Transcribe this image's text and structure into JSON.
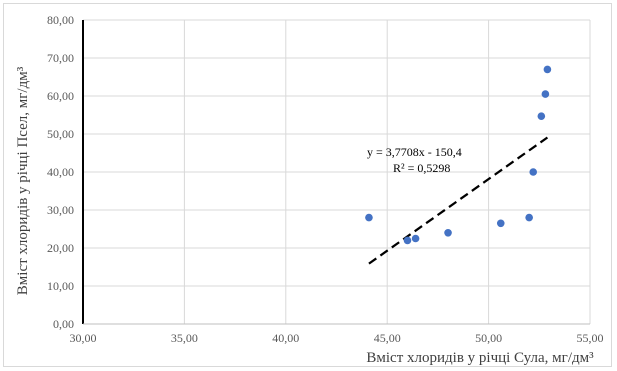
{
  "chart_data": {
    "type": "scatter",
    "xlabel": "Вміст хлоридів у річці Сула, мг/дм³",
    "ylabel": "Вміст хлоридів у річці Псел, мг/дм³",
    "xlim": [
      30,
      55
    ],
    "ylim": [
      0,
      80
    ],
    "x_ticks": [
      "30,00",
      "35,00",
      "40,00",
      "45,00",
      "50,00",
      "55,00"
    ],
    "y_ticks": [
      "0,00",
      "10,00",
      "20,00",
      "30,00",
      "40,00",
      "50,00",
      "60,00",
      "70,00",
      "80,00"
    ],
    "grid": true,
    "marker_color": "#4472c4",
    "points": [
      {
        "x": 44.1,
        "y": 28.0
      },
      {
        "x": 46.0,
        "y": 22.0
      },
      {
        "x": 46.4,
        "y": 22.5
      },
      {
        "x": 48.0,
        "y": 24.0
      },
      {
        "x": 50.6,
        "y": 26.5
      },
      {
        "x": 52.0,
        "y": 28.0
      },
      {
        "x": 52.2,
        "y": 40.0
      },
      {
        "x": 52.6,
        "y": 54.7
      },
      {
        "x": 52.8,
        "y": 60.5
      },
      {
        "x": 52.9,
        "y": 67.0
      }
    ],
    "trendline": {
      "style": "dashed",
      "color": "#000000",
      "equation": "y = 3,7708x - 150,4",
      "r_squared": "R² = 0,5298",
      "x_from": 44.1,
      "x_to": 52.9,
      "slope": 3.7708,
      "intercept": -150.4
    }
  }
}
